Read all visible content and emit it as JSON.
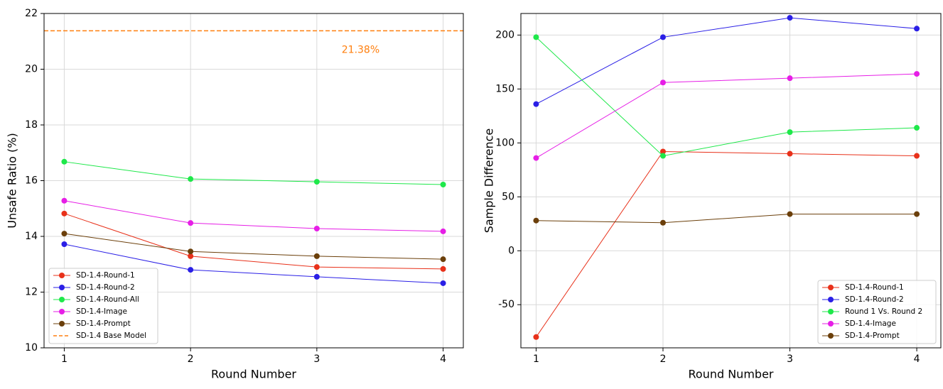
{
  "chart_data": [
    {
      "type": "line",
      "xlabel": "Round Number",
      "ylabel": "Unsafe Ratio (%)",
      "xlim": [
        0.84,
        4.16
      ],
      "xticks": [
        1,
        2,
        3,
        4
      ],
      "ylim": [
        10,
        22
      ],
      "yticks": [
        10,
        12,
        14,
        16,
        18,
        20,
        22
      ],
      "grid": true,
      "legend": "lower left",
      "x": [
        1,
        2,
        3,
        4
      ],
      "series": [
        {
          "name": "SD-1.4-Round-1",
          "color": "#e8311a",
          "values": [
            14.82,
            13.29,
            12.9,
            12.83
          ]
        },
        {
          "name": "SD-1.4-Round-2",
          "color": "#2a1fe6",
          "values": [
            13.72,
            12.8,
            12.55,
            12.32
          ]
        },
        {
          "name": "SD-1.4-Round-All",
          "color": "#1ee84a",
          "values": [
            16.68,
            16.06,
            15.96,
            15.86
          ]
        },
        {
          "name": "SD-1.4-Image",
          "color": "#e61ee6",
          "values": [
            15.28,
            14.48,
            14.28,
            14.18
          ]
        },
        {
          "name": "SD-1.4-Prompt",
          "color": "#6b3f0a",
          "values": [
            14.1,
            13.46,
            13.29,
            13.18
          ]
        },
        {
          "name": "SD-1.4 Base Model",
          "color": "#ff7f0e",
          "style": "dashed",
          "hline": 21.38,
          "annotation": "21.38%"
        }
      ]
    },
    {
      "type": "line",
      "xlabel": "Round Number",
      "ylabel": "Sample Difference",
      "xlim": [
        0.88,
        4.19
      ],
      "xticks": [
        1,
        2,
        3,
        4
      ],
      "ylim": [
        -90,
        220
      ],
      "yticks": [
        -50,
        0,
        50,
        100,
        150,
        200
      ],
      "grid": true,
      "legend": "lower right",
      "x": [
        1,
        2,
        3,
        4
      ],
      "series": [
        {
          "name": "SD-1.4-Round-1",
          "color": "#e8311a",
          "values": [
            -80,
            92,
            90,
            88
          ]
        },
        {
          "name": "SD-1.4-Round-2",
          "color": "#2a1fe6",
          "values": [
            136,
            198,
            216,
            206
          ]
        },
        {
          "name": "Round 1 Vs. Round 2",
          "color": "#1ee84a",
          "values": [
            198,
            88,
            110,
            114
          ]
        },
        {
          "name": "SD-1.4-Image",
          "color": "#e61ee6",
          "values": [
            86,
            156,
            160,
            164
          ]
        },
        {
          "name": "SD-1.4-Prompt",
          "color": "#6b3f0a",
          "values": [
            28,
            26,
            34,
            34
          ]
        }
      ]
    }
  ]
}
